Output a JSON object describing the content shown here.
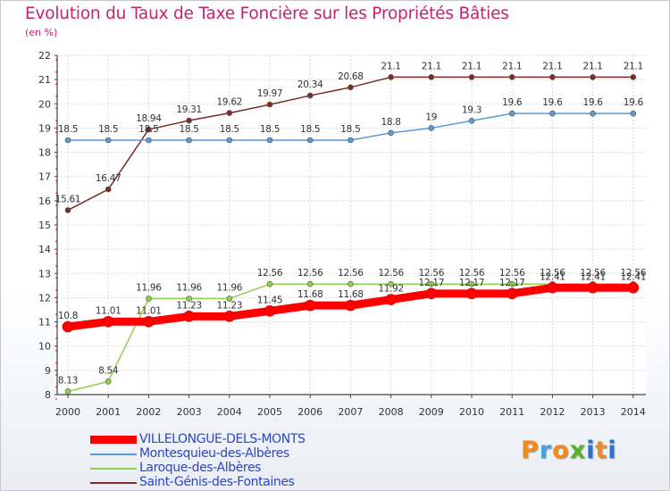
{
  "title": "Evolution du Taux de Taxe Foncière sur les Propriétés Bâties",
  "unit": "(en %)",
  "logo": {
    "letters": [
      "P",
      "r",
      "o",
      "x",
      "i",
      "t",
      "i"
    ],
    "colors": [
      "#f08a1c",
      "#4aa3df",
      "#f08a1c",
      "#5bb12f",
      "#2a73c7",
      "#f08a1c",
      "#2a73c7"
    ]
  },
  "chart_data": {
    "type": "line",
    "title": "Evolution du Taux de Taxe Foncière sur les Propriétés Bâties",
    "ylabel": "(en %)",
    "xlabel": "",
    "ylim": [
      8,
      22
    ],
    "yticks": [
      "8",
      "9",
      "10",
      "11",
      "12",
      "13",
      "14",
      "15",
      "16",
      "17",
      "18",
      "19",
      "20",
      "21",
      "22"
    ],
    "x": [
      "2000",
      "2001",
      "2002",
      "2003",
      "2004",
      "2005",
      "2006",
      "2007",
      "2008",
      "2009",
      "2010",
      "2011",
      "2012",
      "2013",
      "2014"
    ],
    "grid": true,
    "legend": "bottom-left",
    "series": [
      {
        "name": "VILLELONGUE-DELS-MONTS",
        "color": "#ff0000",
        "values": [
          10.8,
          11.01,
          11.01,
          11.23,
          11.23,
          11.45,
          11.68,
          11.68,
          11.92,
          12.17,
          12.17,
          12.17,
          12.41,
          12.41,
          12.41
        ],
        "labels": [
          "10.8",
          "11.01",
          "11.01",
          "11.23",
          "11.23",
          "11.45",
          "11.68",
          "11.68",
          "11.92",
          "12.17",
          "12.17",
          "12.17",
          "12.41",
          "12.41",
          "12.41"
        ]
      },
      {
        "name": "Montesquieu-des-Albères",
        "color": "#5a9bd5",
        "values": [
          18.5,
          18.5,
          18.5,
          18.5,
          18.5,
          18.5,
          18.5,
          18.5,
          18.8,
          19,
          19.3,
          19.6,
          19.6,
          19.6,
          19.6
        ],
        "labels": [
          "18.5",
          "18.5",
          "18.5",
          "18.5",
          "18.5",
          "18.5",
          "18.5",
          "18.5",
          "18.8",
          "19",
          "19.3",
          "19.6",
          "19.6",
          "19.6",
          "19.6"
        ]
      },
      {
        "name": "Laroque-des-Albères",
        "color": "#8fd14f",
        "values": [
          8.13,
          8.54,
          11.96,
          11.96,
          11.96,
          12.56,
          12.56,
          12.56,
          12.56,
          12.56,
          12.56,
          12.56,
          12.56,
          12.56,
          12.56
        ],
        "labels": [
          "8.13",
          "8.54",
          "11.96",
          "11.96",
          "11.96",
          "12.56",
          "12.56",
          "12.56",
          "12.56",
          "12.56",
          "12.56",
          "12.56",
          "12.56",
          "12.56",
          "12.56"
        ]
      },
      {
        "name": "Saint-Génis-des-Fontaines",
        "color": "#7b2d26",
        "values": [
          15.61,
          16.47,
          18.94,
          19.31,
          19.62,
          19.97,
          20.34,
          20.68,
          21.1,
          21.1,
          21.1,
          21.1,
          21.1,
          21.1,
          21.1
        ],
        "labels": [
          "15.61",
          "16.47",
          "18.94",
          "19.31",
          "19.62",
          "19.97",
          "20.34",
          "20.68",
          "21.1",
          "21.1",
          "21.1",
          "21.1",
          "21.1",
          "21.1",
          "21.1"
        ]
      }
    ]
  }
}
